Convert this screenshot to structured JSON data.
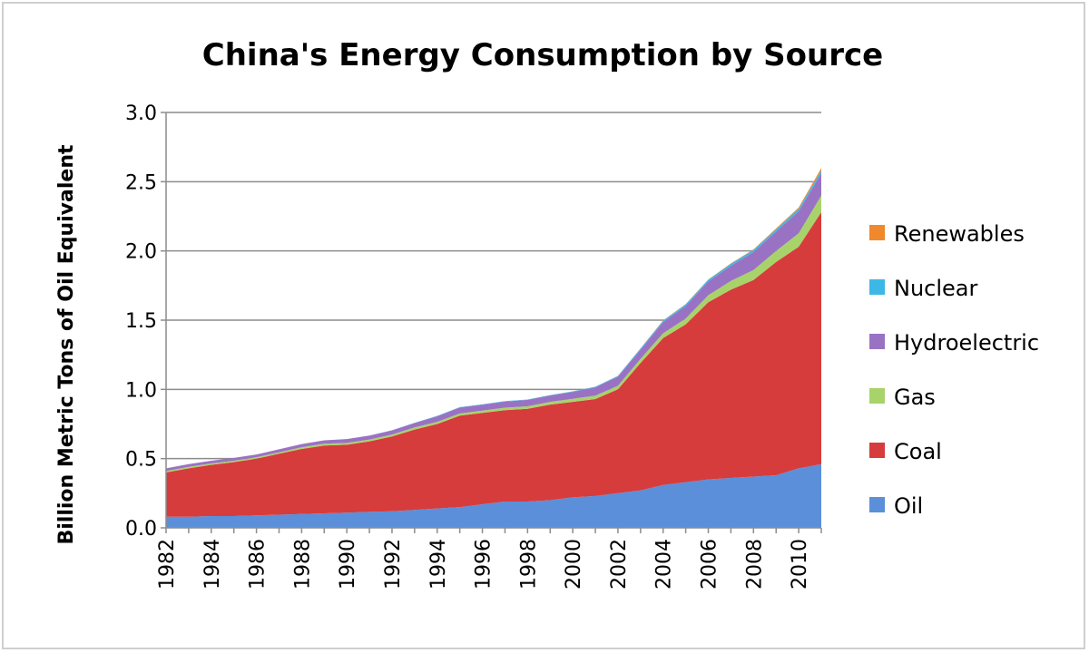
{
  "chart_data": {
    "type": "area",
    "stacked": true,
    "title": "China's Energy Consumption by Source",
    "xlabel": "",
    "ylabel": "Billion Metric Tons of Oil Equivalent",
    "ylim": [
      0,
      3.0
    ],
    "yticks": [
      "0.0",
      "0.5",
      "1.0",
      "1.5",
      "2.0",
      "2.5",
      "3.0"
    ],
    "xticks": [
      "1982",
      "1984",
      "1986",
      "1988",
      "1990",
      "1992",
      "1994",
      "1996",
      "1998",
      "2000",
      "2002",
      "2004",
      "2006",
      "2008",
      "2010"
    ],
    "x": [
      1982,
      1983,
      1984,
      1985,
      1986,
      1987,
      1988,
      1989,
      1990,
      1991,
      1992,
      1993,
      1994,
      1995,
      1996,
      1997,
      1998,
      1999,
      2000,
      2001,
      2002,
      2003,
      2004,
      2005,
      2006,
      2007,
      2008,
      2009,
      2010,
      2011
    ],
    "grid": "horizontal",
    "legend_position": "right",
    "series": [
      {
        "name": "Oil",
        "color": "#5b8fd9",
        "values": [
          0.08,
          0.08,
          0.085,
          0.085,
          0.09,
          0.095,
          0.1,
          0.105,
          0.11,
          0.115,
          0.12,
          0.13,
          0.14,
          0.15,
          0.17,
          0.19,
          0.19,
          0.2,
          0.22,
          0.23,
          0.25,
          0.27,
          0.31,
          0.33,
          0.35,
          0.36,
          0.37,
          0.38,
          0.43,
          0.46
        ]
      },
      {
        "name": "Coal",
        "color": "#d63c3c",
        "values": [
          0.32,
          0.35,
          0.37,
          0.39,
          0.41,
          0.44,
          0.47,
          0.49,
          0.49,
          0.51,
          0.54,
          0.58,
          0.61,
          0.66,
          0.66,
          0.66,
          0.67,
          0.69,
          0.69,
          0.7,
          0.75,
          0.92,
          1.06,
          1.14,
          1.28,
          1.36,
          1.42,
          1.54,
          1.6,
          1.82
        ]
      },
      {
        "name": "Gas",
        "color": "#a8d36a",
        "values": [
          0.01,
          0.01,
          0.01,
          0.01,
          0.01,
          0.01,
          0.012,
          0.012,
          0.013,
          0.013,
          0.014,
          0.015,
          0.016,
          0.016,
          0.017,
          0.018,
          0.018,
          0.02,
          0.022,
          0.025,
          0.026,
          0.03,
          0.035,
          0.042,
          0.05,
          0.063,
          0.072,
          0.08,
          0.097,
          0.12
        ]
      },
      {
        "name": "Hydroelectric",
        "color": "#9a72c4",
        "values": [
          0.02,
          0.02,
          0.02,
          0.02,
          0.02,
          0.022,
          0.023,
          0.025,
          0.028,
          0.028,
          0.03,
          0.032,
          0.04,
          0.043,
          0.042,
          0.044,
          0.046,
          0.046,
          0.05,
          0.06,
          0.065,
          0.065,
          0.08,
          0.09,
          0.1,
          0.11,
          0.13,
          0.14,
          0.16,
          0.16
        ]
      },
      {
        "name": "Nuclear",
        "color": "#3db8e6",
        "values": [
          0,
          0,
          0,
          0,
          0,
          0,
          0,
          0,
          0,
          0,
          0.001,
          0.002,
          0.003,
          0.003,
          0.003,
          0.003,
          0.003,
          0.003,
          0.004,
          0.004,
          0.006,
          0.01,
          0.011,
          0.012,
          0.012,
          0.014,
          0.015,
          0.016,
          0.017,
          0.02
        ]
      },
      {
        "name": "Renewables",
        "color": "#f0882c",
        "values": [
          0,
          0,
          0,
          0,
          0,
          0,
          0,
          0,
          0,
          0,
          0,
          0,
          0,
          0,
          0,
          0,
          0,
          0,
          0,
          0,
          0.001,
          0.001,
          0.002,
          0.002,
          0.002,
          0.003,
          0.004,
          0.006,
          0.01,
          0.018
        ]
      }
    ]
  }
}
